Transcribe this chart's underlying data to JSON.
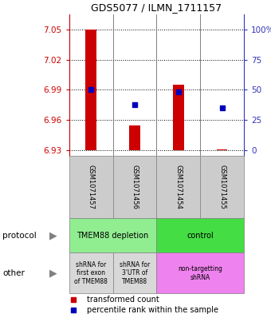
{
  "title": "GDS5077 / ILMN_1711157",
  "samples": [
    "GSM1071457",
    "GSM1071456",
    "GSM1071454",
    "GSM1071455"
  ],
  "bar_bottoms": [
    6.93,
    6.93,
    6.93,
    6.93
  ],
  "bar_tops": [
    7.05,
    6.955,
    6.995,
    6.931
  ],
  "blue_y": [
    6.99,
    6.975,
    6.988,
    6.972
  ],
  "ylim_left": [
    6.925,
    7.065
  ],
  "yticks_left": [
    6.93,
    6.96,
    6.99,
    7.02,
    7.05
  ],
  "yticks_right_pct": [
    0,
    25,
    50,
    75,
    100
  ],
  "yticks_right_vals": [
    6.93,
    6.96,
    6.99,
    7.02,
    7.05
  ],
  "protocol_data": [
    [
      0,
      2,
      "#90EE90",
      "TMEM88 depletion"
    ],
    [
      2,
      4,
      "#44DD44",
      "control"
    ]
  ],
  "other_data": [
    [
      0,
      1,
      "#D8D8D8",
      "shRNA for\nfirst exon\nof TMEM88"
    ],
    [
      1,
      2,
      "#D8D8D8",
      "shRNA for\n3'UTR of\nTMEM88"
    ],
    [
      2,
      4,
      "#EE82EE",
      "non-targetting\nshRNA"
    ]
  ],
  "bar_color": "#CC0000",
  "blue_color": "#0000BB",
  "left_axis_color": "#CC0000",
  "right_axis_color": "#3333BB",
  "bar_width": 0.25
}
